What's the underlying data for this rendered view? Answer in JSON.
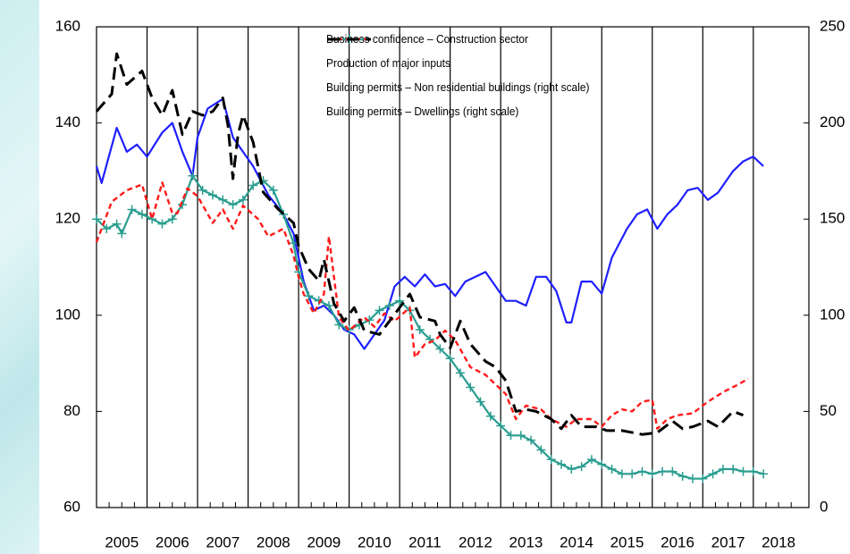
{
  "chart_data": {
    "type": "line",
    "xlim": [
      2005,
      2019.1
    ],
    "xticks": [
      2005,
      2006,
      2007,
      2008,
      2009,
      2010,
      2011,
      2012,
      2013,
      2014,
      2015,
      2016,
      2017,
      2018
    ],
    "ylim": [
      60,
      160
    ],
    "yticks": [
      60,
      80,
      100,
      120,
      140,
      160
    ],
    "y2lim": [
      0,
      250
    ],
    "y2ticks": [
      0,
      50,
      100,
      150,
      200,
      250
    ],
    "year_gridlines": true,
    "series": [
      {
        "name": "Business confidence – Construction sector",
        "color": "#1f1fff",
        "line_style": "solid",
        "axis": "y",
        "x": [
          2005.0,
          2005.1,
          2005.4,
          2005.6,
          2005.8,
          2006.0,
          2006.3,
          2006.5,
          2006.7,
          2006.9,
          2007.0,
          2007.2,
          2007.5,
          2007.7,
          2007.9,
          2008.1,
          2008.4,
          2008.7,
          2008.9,
          2009.1,
          2009.3,
          2009.5,
          2009.7,
          2009.9,
          2010.1,
          2010.3,
          2010.5,
          2010.7,
          2010.9,
          2011.1,
          2011.3,
          2011.5,
          2011.7,
          2011.9,
          2012.1,
          2012.3,
          2012.5,
          2012.7,
          2012.9,
          2013.1,
          2013.3,
          2013.5,
          2013.7,
          2013.9,
          2014.1,
          2014.3,
          2014.4,
          2014.6,
          2014.8,
          2015.0,
          2015.2,
          2015.5,
          2015.7,
          2015.9,
          2016.1,
          2016.3,
          2016.5,
          2016.7,
          2016.9,
          2017.1,
          2017.3,
          2017.6,
          2017.8,
          2017.9,
          2018.0,
          2018.2
        ],
        "values": [
          131,
          127.5,
          139,
          134,
          135.5,
          133,
          138,
          140,
          134,
          129,
          137,
          143,
          145,
          137,
          134,
          131,
          125,
          121,
          117,
          107,
          101,
          102,
          100,
          97,
          96,
          93,
          96,
          99,
          106,
          108,
          106,
          108.5,
          106,
          106.5,
          104,
          107,
          108,
          109,
          106,
          103,
          103,
          102,
          108,
          108,
          105,
          98.5,
          98.5,
          107,
          107,
          104.5,
          112,
          118,
          121,
          122,
          118,
          121,
          123,
          126,
          126.5,
          124,
          125.5,
          130,
          132,
          132.5,
          133,
          131
        ]
      },
      {
        "name": "Production of major inputs",
        "color": "#2a9d8f",
        "line_style": "solid",
        "marker": "+",
        "axis": "y",
        "x": [
          2005.0,
          2005.2,
          2005.4,
          2005.5,
          2005.7,
          2005.9,
          2006.1,
          2006.3,
          2006.5,
          2006.7,
          2006.9,
          2007.1,
          2007.3,
          2007.5,
          2007.7,
          2007.9,
          2008.1,
          2008.3,
          2008.5,
          2008.7,
          2008.9,
          2009.0,
          2009.2,
          2009.4,
          2009.6,
          2009.8,
          2010.0,
          2010.2,
          2010.4,
          2010.6,
          2010.8,
          2011.0,
          2011.2,
          2011.4,
          2011.6,
          2011.8,
          2012.0,
          2012.2,
          2012.4,
          2012.6,
          2012.8,
          2013.0,
          2013.2,
          2013.4,
          2013.6,
          2013.8,
          2014.0,
          2014.2,
          2014.4,
          2014.6,
          2014.8,
          2015.0,
          2015.2,
          2015.4,
          2015.6,
          2015.8,
          2016.0,
          2016.2,
          2016.4,
          2016.6,
          2016.8,
          2017.0,
          2017.2,
          2017.4,
          2017.6,
          2017.8,
          2018.0,
          2018.2
        ],
        "values": [
          120,
          118,
          119,
          117,
          122,
          121,
          120,
          119,
          120,
          123,
          129,
          126,
          125,
          124,
          123,
          124,
          127,
          128,
          126,
          121,
          115,
          109,
          104,
          103,
          102,
          98,
          97,
          98,
          99,
          101,
          102,
          103,
          101,
          97,
          95,
          93,
          91,
          88,
          85,
          82,
          79,
          77,
          75,
          75,
          74,
          72,
          70,
          69,
          68,
          68.5,
          70,
          69,
          68,
          67,
          67,
          67.5,
          67,
          67.5,
          67.5,
          66.5,
          66,
          66,
          67,
          68,
          68,
          67.5,
          67.5,
          67
        ]
      },
      {
        "name": "Building permits – Non residential buildings (right scale)",
        "color": "#ff1a1a",
        "line_style": "dotted",
        "axis": "y2",
        "x": [
          2005.0,
          2005.3,
          2005.6,
          2005.9,
          2006.1,
          2006.3,
          2006.5,
          2006.6,
          2006.8,
          2007.0,
          2007.3,
          2007.5,
          2007.7,
          2007.9,
          2008.2,
          2008.4,
          2008.7,
          2008.9,
          2009.0,
          2009.1,
          2009.3,
          2009.5,
          2009.6,
          2009.8,
          2010.0,
          2010.3,
          2010.5,
          2010.7,
          2010.9,
          2011.2,
          2011.3,
          2011.5,
          2011.7,
          2011.9,
          2012.1,
          2012.4,
          2012.7,
          2012.9,
          2013.1,
          2013.3,
          2013.5,
          2013.8,
          2014.0,
          2014.3,
          2014.5,
          2014.8,
          2015.0,
          2015.2,
          2015.4,
          2015.6,
          2015.8,
          2016.0,
          2016.1,
          2016.3,
          2016.5,
          2016.8,
          2017.1,
          2017.4,
          2017.7,
          2017.9
        ],
        "values": [
          138,
          159,
          165,
          168,
          150,
          169,
          153,
          153,
          166,
          162,
          148,
          155,
          145,
          157,
          150,
          141,
          145,
          131,
          120,
          111,
          101,
          111,
          141,
          99,
          92,
          99,
          94,
          101,
          97,
          104,
          78,
          85,
          87,
          92,
          87,
          73,
          69,
          64,
          59,
          46,
          53,
          51,
          46,
          42,
          46,
          46,
          42,
          48,
          51,
          50,
          55,
          56,
          41,
          46,
          48,
          49,
          55,
          60,
          64,
          67
        ]
      },
      {
        "name": "Building permits – Dwellings (right scale)",
        "color": "#000000",
        "line_style": "dashed",
        "axis": "y2",
        "x": [
          2005.0,
          2005.3,
          2005.4,
          2005.6,
          2005.9,
          2006.1,
          2006.3,
          2006.5,
          2006.7,
          2006.9,
          2007.1,
          2007.3,
          2007.5,
          2007.6,
          2007.7,
          2007.8,
          2007.9,
          2008.1,
          2008.3,
          2008.6,
          2008.9,
          2009.0,
          2009.2,
          2009.4,
          2009.5,
          2009.7,
          2009.9,
          2010.1,
          2010.3,
          2010.6,
          2010.8,
          2011.0,
          2011.2,
          2011.4,
          2011.7,
          2011.8,
          2012.0,
          2012.2,
          2012.4,
          2012.7,
          2012.9,
          2013.1,
          2013.3,
          2013.5,
          2013.7,
          2014.0,
          2014.2,
          2014.4,
          2014.6,
          2014.9,
          2015.1,
          2015.4,
          2015.8,
          2016.1,
          2016.4,
          2016.6,
          2016.8,
          2017.1,
          2017.3,
          2017.6,
          2017.8
        ],
        "values": [
          206,
          215,
          236,
          220,
          227,
          213,
          204,
          217,
          194,
          206,
          204,
          206,
          213,
          199,
          171,
          194,
          204,
          190,
          164,
          155,
          148,
          136,
          124,
          118,
          129,
          106,
          97,
          104,
          92,
          90,
          97,
          104,
          111,
          99,
          97,
          90,
          83,
          97,
          85,
          76,
          73,
          66,
          50,
          51,
          50,
          46,
          41,
          48,
          42,
          42,
          40,
          40,
          38,
          39,
          45,
          41,
          42,
          45,
          42,
          50,
          48
        ]
      }
    ]
  }
}
